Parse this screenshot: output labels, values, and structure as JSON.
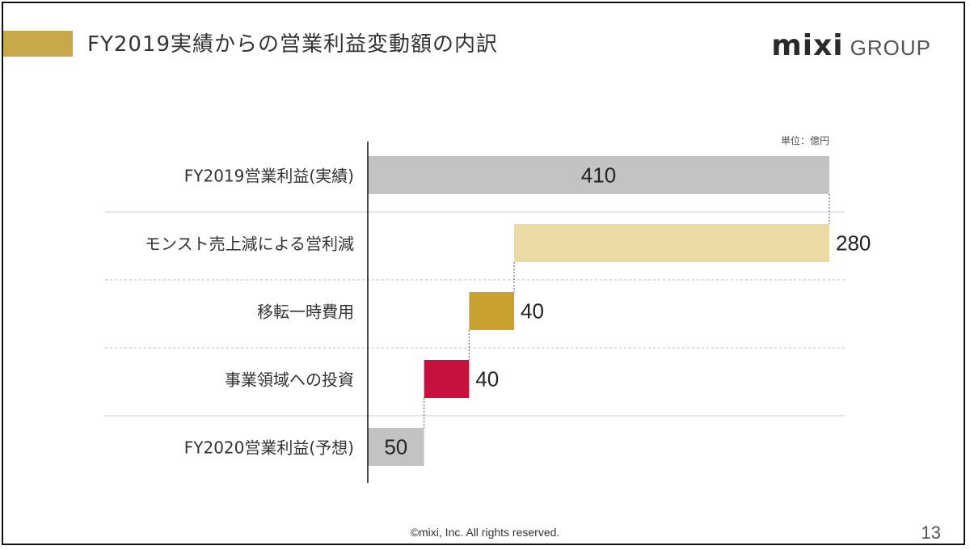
{
  "slide": {
    "title": "FY2019実績からの営業利益変動額の内訳",
    "logo": {
      "mark": "mixi",
      "group": "GROUP"
    },
    "footer": "©mixi, Inc. All rights reserved.",
    "page_number": "13"
  },
  "colors": {
    "accent": "#c9a84a",
    "start_bar": "#c3c3c3",
    "monst": "#ecdaa5",
    "relocation": "#c9a131",
    "investment": "#c8103c",
    "end_bar": "#c3c3c3"
  },
  "chart_data": {
    "type": "bar",
    "subtype": "waterfall",
    "orientation": "horizontal",
    "unit_label": "単位：億円",
    "categories": [
      "FY2019営業利益(実績)",
      "モンスト売上減による営利減",
      "移転一時費用",
      "事業領域への投資",
      "FY2020営業利益(予想)"
    ],
    "values": [
      410,
      280,
      40,
      40,
      50
    ],
    "kinds": [
      "total",
      "decrease",
      "decrease",
      "decrease",
      "total"
    ],
    "value_labels": [
      "410",
      "280",
      "40",
      "40",
      "50"
    ],
    "colors": [
      "#c3c3c3",
      "#ecdaa5",
      "#c9a131",
      "#c8103c",
      "#c3c3c3"
    ],
    "xlim": [
      0,
      410
    ],
    "grid": false
  }
}
